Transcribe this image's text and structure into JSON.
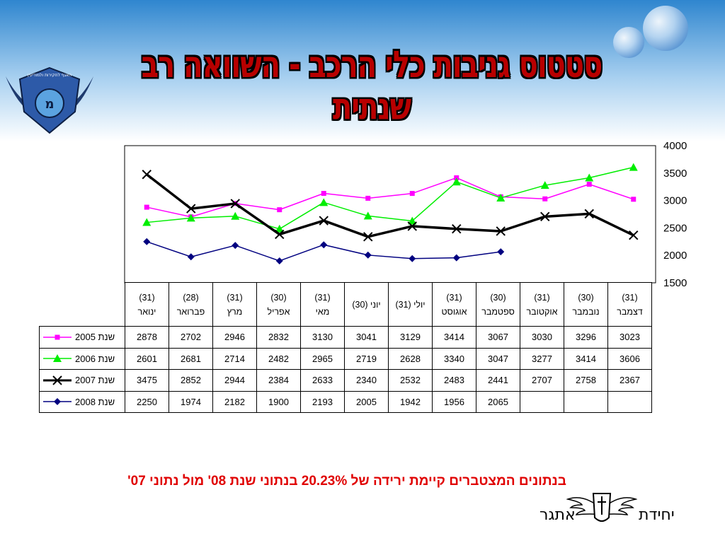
{
  "title": "סטטוס גניבות כלי הרכב - השוואה רב שנתית",
  "footnote": "בנתונים המצטברים קיימת ירידה של 20.23% בנתוני שנת 08' מול נתוני 07'",
  "unit_logo_name": "unit-emblem",
  "unit_name": [
    "יחידת",
    "אתגר"
  ],
  "police_logo_text": "האגף לחקירות ולמודיעין",
  "months": [
    {
      "days": "(31)",
      "name": "ינואר"
    },
    {
      "days": "(28)",
      "name": "פברואר"
    },
    {
      "days": "(31)",
      "name": "מרץ"
    },
    {
      "days": "(30)",
      "name": "אפריל"
    },
    {
      "days": "(31)",
      "name": "מאי"
    },
    {
      "days": "",
      "name": "יוני (30)"
    },
    {
      "days": "",
      "name": "יולי (31)"
    },
    {
      "days": "(31)",
      "name": "אוגוסט"
    },
    {
      "days": "(30)",
      "name": "ספטמבר"
    },
    {
      "days": "(31)",
      "name": "אוקטובר"
    },
    {
      "days": "(30)",
      "name": "נובמבר"
    },
    {
      "days": "(31)",
      "name": "דצמבר"
    }
  ],
  "chart_data": {
    "type": "line",
    "title": "סטטוס גניבות כלי הרכב - השוואה רב שנתית",
    "categories": [
      "ינואר",
      "פברואר",
      "מרץ",
      "אפריל",
      "מאי",
      "יוני",
      "יולי",
      "אוגוסט",
      "ספטמבר",
      "אוקטובר",
      "נובמבר",
      "דצמבר"
    ],
    "ylim": [
      1500,
      4000
    ],
    "yticks": [
      "4000",
      "3500",
      "3000",
      "2500",
      "2000",
      "1500"
    ],
    "y_axis_side": "right",
    "grid": false,
    "legend": "table-left",
    "series": [
      {
        "name": "שנת 2005",
        "color": "#ff00ff",
        "marker": "square",
        "width": 1.5,
        "values": [
          2878,
          2702,
          2946,
          2832,
          3130,
          3041,
          3129,
          3414,
          3067,
          3030,
          3296,
          3023
        ]
      },
      {
        "name": "שנת 2006",
        "color": "#00ee00",
        "marker": "triangle",
        "width": 1.5,
        "values": [
          2601,
          2681,
          2714,
          2482,
          2965,
          2719,
          2628,
          3340,
          3047,
          3277,
          3414,
          3606
        ]
      },
      {
        "name": "שנת 2007",
        "color": "#000000",
        "marker": "x",
        "width": 3.5,
        "values": [
          3475,
          2852,
          2944,
          2384,
          2633,
          2340,
          2532,
          2483,
          2441,
          2707,
          2758,
          2367
        ]
      },
      {
        "name": "שנת 2008",
        "color": "#000080",
        "marker": "diamond",
        "width": 1.5,
        "values": [
          2250,
          1974,
          2182,
          1900,
          2193,
          2005,
          1942,
          1956,
          2065,
          null,
          null,
          null
        ]
      }
    ]
  }
}
